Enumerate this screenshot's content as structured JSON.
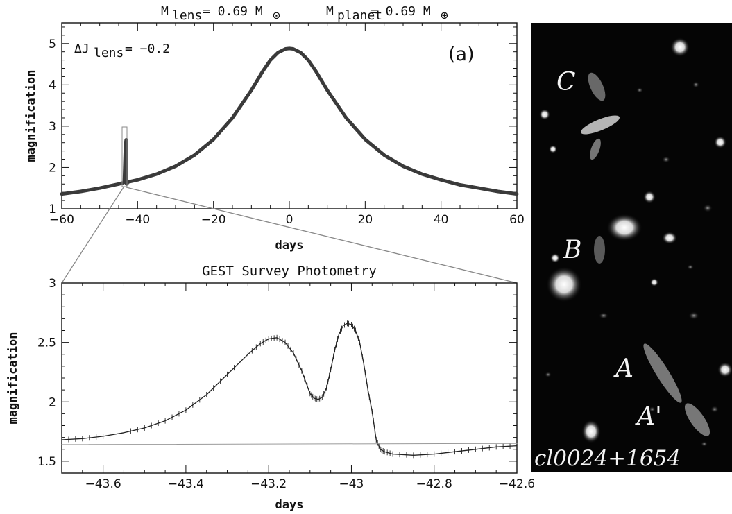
{
  "header": {
    "m_lens": "M",
    "m_lens_sub": "lens",
    "m_lens_value": "= 0.69 M",
    "m_lens_unit_sub": "⊙",
    "m_planet": "M",
    "m_planet_sub": "planet",
    "m_planet_value": "= 0.69 M",
    "m_planet_unit_sub": "⊕"
  },
  "top_panel": {
    "annotation": "ΔJ",
    "annotation_sub": "lens",
    "annotation_value": "= −0.2",
    "panel_label": "(a)"
  },
  "bottom_panel": {
    "title": "GEST Survey Photometry"
  },
  "image_panel": {
    "labels": [
      "C",
      "B",
      "A",
      "A'"
    ],
    "caption": "cl0024+1654"
  },
  "chart_data": [
    {
      "type": "line",
      "xlabel": "days",
      "ylabel": "magnification",
      "xlim": [
        -60,
        60
      ],
      "ylim": [
        1,
        5.5
      ],
      "xticks": [
        -60,
        -40,
        -20,
        0,
        20,
        40,
        60
      ],
      "xtick_labels": [
        "−60",
        "−40",
        "−20",
        "0",
        "20",
        "40",
        "60"
      ],
      "yticks": [
        1,
        2,
        3,
        4,
        5
      ],
      "ytick_labels": [
        "1",
        "2",
        "3",
        "4",
        "5"
      ],
      "series": [
        {
          "x": [
            -60,
            -55,
            -50,
            -45,
            -43.5,
            -43.2,
            -43.0,
            -42.9,
            -42.5,
            -40,
            -35,
            -30,
            -25,
            -20,
            -15,
            -10,
            -7,
            -5,
            -3,
            -1,
            0,
            1,
            3,
            5,
            7,
            10,
            15,
            20,
            25,
            30,
            35,
            40,
            45,
            50,
            55,
            60
          ],
          "y": [
            1.36,
            1.42,
            1.5,
            1.6,
            1.64,
            2.55,
            2.67,
            1.6,
            1.65,
            1.7,
            1.84,
            2.03,
            2.3,
            2.68,
            3.2,
            3.87,
            4.33,
            4.6,
            4.78,
            4.87,
            4.88,
            4.87,
            4.78,
            4.6,
            4.33,
            3.87,
            3.2,
            2.68,
            2.3,
            2.03,
            1.84,
            1.7,
            1.58,
            1.5,
            1.42,
            1.36
          ]
        }
      ],
      "grid": false
    },
    {
      "type": "line",
      "title": "GEST Survey Photometry",
      "xlabel": "days",
      "ylabel": "magnification",
      "xlim": [
        -43.7,
        -42.6
      ],
      "ylim": [
        1.4,
        3
      ],
      "xticks": [
        -43.6,
        -43.4,
        -43.2,
        -43,
        -42.8,
        -42.6
      ],
      "xtick_labels": [
        "−43.6",
        "−43.4",
        "−43.2",
        "−43",
        "−42.8",
        "−42.6"
      ],
      "yticks": [
        1.5,
        2,
        2.5,
        3
      ],
      "ytick_labels": [
        "1.5",
        "2",
        "2.5",
        "3"
      ],
      "series": [
        {
          "x": [
            -43.7,
            -43.65,
            -43.6,
            -43.55,
            -43.5,
            -43.45,
            -43.4,
            -43.35,
            -43.3,
            -43.25,
            -43.22,
            -43.2,
            -43.18,
            -43.16,
            -43.14,
            -43.12,
            -43.1,
            -43.09,
            -43.08,
            -43.07,
            -43.06,
            -43.05,
            -43.04,
            -43.03,
            -43.02,
            -43.01,
            -43.0,
            -42.99,
            -42.98,
            -42.97,
            -42.96,
            -42.95,
            -42.94,
            -42.93,
            -42.92,
            -42.9,
            -42.85,
            -42.8,
            -42.75,
            -42.7,
            -42.65,
            -42.6
          ],
          "y": [
            1.68,
            1.69,
            1.71,
            1.74,
            1.78,
            1.84,
            1.93,
            2.06,
            2.23,
            2.4,
            2.49,
            2.53,
            2.54,
            2.5,
            2.41,
            2.26,
            2.07,
            2.03,
            2.02,
            2.04,
            2.12,
            2.27,
            2.44,
            2.57,
            2.64,
            2.66,
            2.65,
            2.6,
            2.5,
            2.32,
            2.1,
            1.92,
            1.68,
            1.6,
            1.58,
            1.56,
            1.55,
            1.56,
            1.58,
            1.6,
            1.62,
            1.63
          ]
        },
        {
          "name": "",
          "x": [
            -43.7,
            -42.6
          ],
          "y": [
            1.64,
            1.65
          ]
        }
      ],
      "grid": false
    }
  ]
}
